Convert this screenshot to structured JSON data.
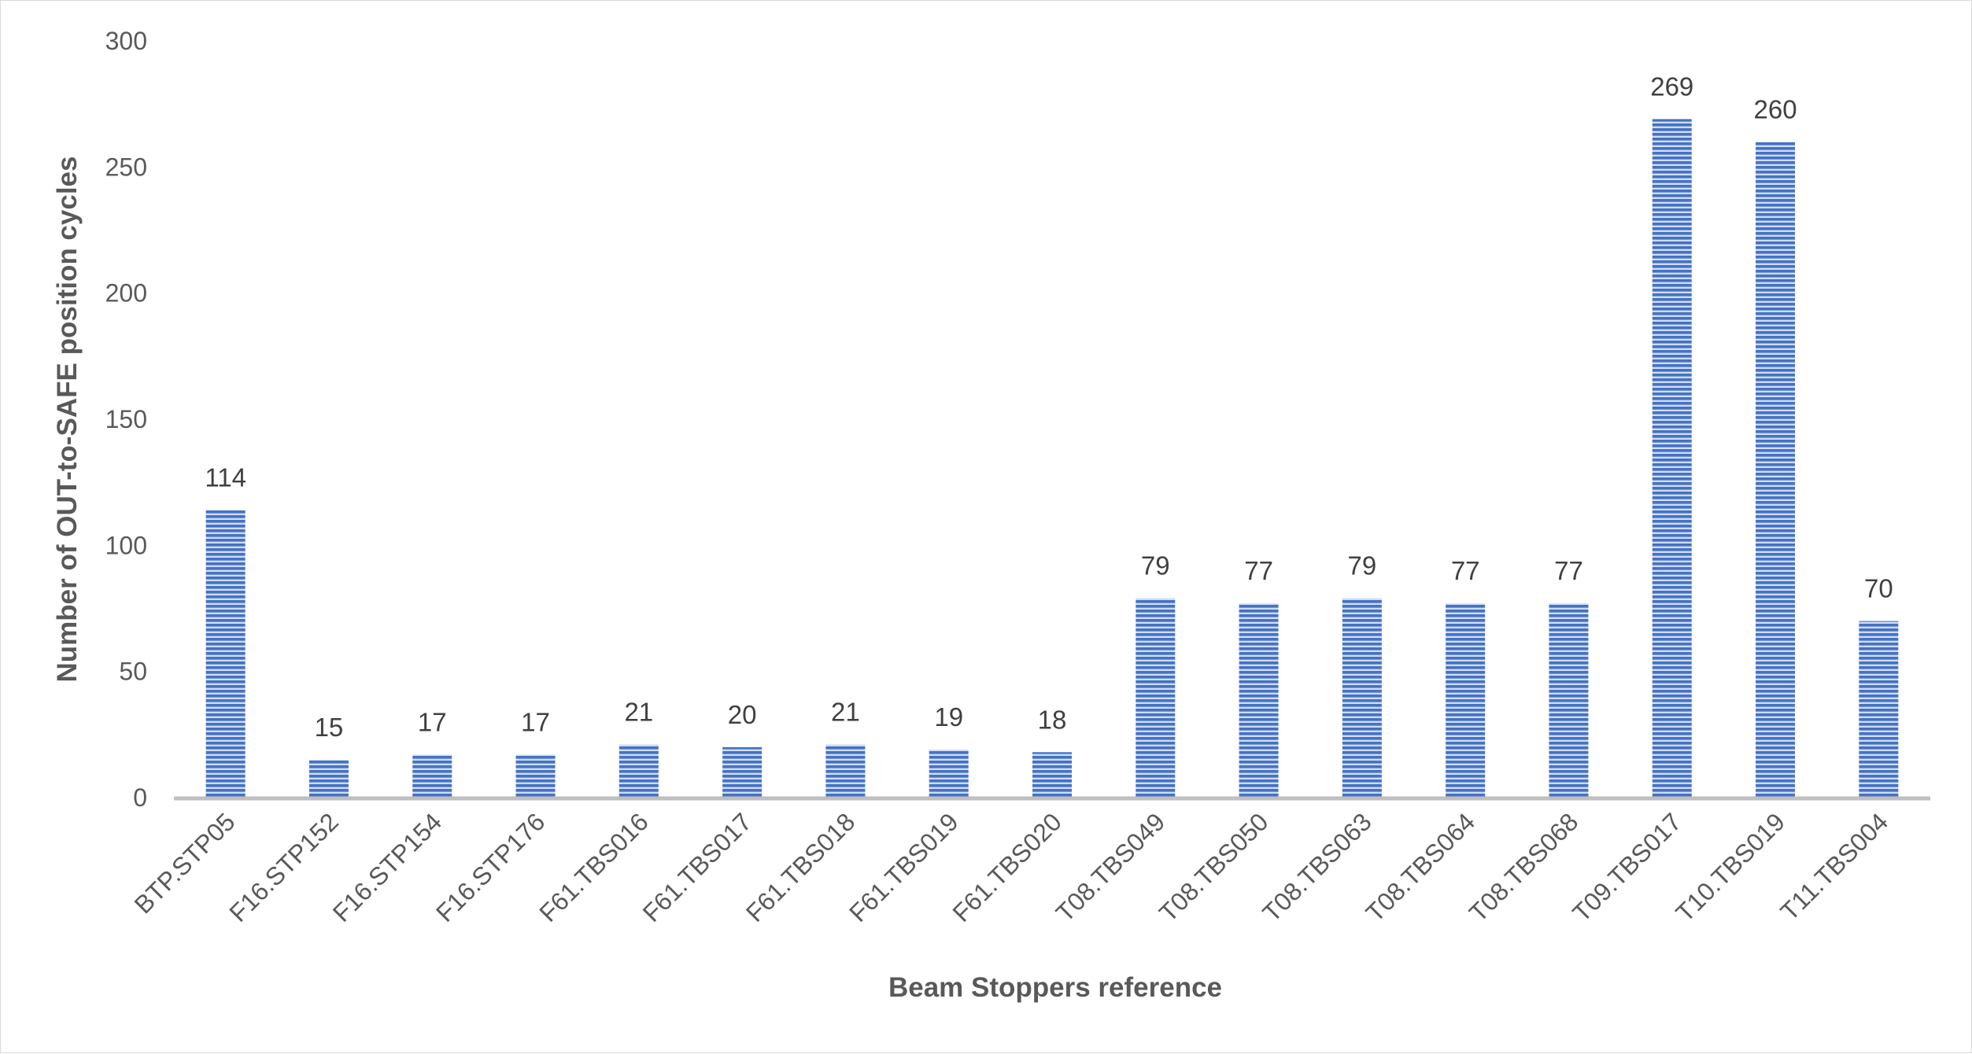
{
  "chart_data": {
    "type": "bar",
    "title": "",
    "xlabel": "Beam Stoppers reference",
    "ylabel": "Number of OUT-to-SAFE position cycles",
    "ylim": [
      0,
      300
    ],
    "yticks": [
      0,
      50,
      100,
      150,
      200,
      250,
      300
    ],
    "grid": false,
    "legend": "none",
    "categories": [
      "BTP.STP05",
      "F16.STP152",
      "F16.STP154",
      "F16.STP176",
      "F61.TBS016",
      "F61.TBS017",
      "F61.TBS018",
      "F61.TBS019",
      "F61.TBS020",
      "T08.TBS049",
      "T08.TBS050",
      "T08.TBS063",
      "T08.TBS064",
      "T08.TBS068",
      "T09.TBS017",
      "T10.TBS019",
      "T11.TBS004"
    ],
    "series": [
      {
        "values": [
          114,
          15,
          17,
          17,
          21,
          20,
          21,
          19,
          18,
          79,
          77,
          79,
          77,
          77,
          269,
          260,
          70
        ],
        "color": "#4472c4",
        "pattern": "horizontal-stripes",
        "data_labels": true
      }
    ]
  }
}
